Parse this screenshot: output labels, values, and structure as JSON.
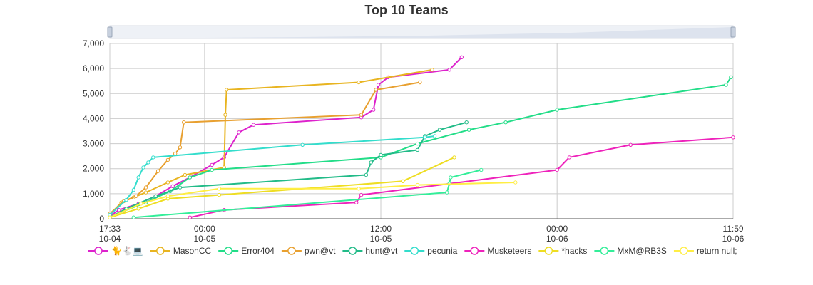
{
  "chart_data": {
    "type": "line",
    "title": "Top 10 Teams",
    "xlabel": "",
    "ylabel": "",
    "ylim": [
      0,
      7000
    ],
    "xlim": [
      "10-04 17:33",
      "10-06 11:59"
    ],
    "y_ticks": [
      "0",
      "1,000",
      "2,000",
      "3,000",
      "4,000",
      "5,000",
      "6,000",
      "7,000"
    ],
    "x_ticks": [
      {
        "time": "17:33",
        "date": "10-04"
      },
      {
        "time": "00:00",
        "date": "10-05"
      },
      {
        "time": "12:00",
        "date": "10-05"
      },
      {
        "time": "00:00",
        "date": "10-06"
      },
      {
        "time": "11:59",
        "date": "10-06"
      }
    ],
    "grid": true,
    "legend_position": "bottom",
    "has_range_slider": true,
    "series": [
      {
        "name": "🐈🐇💻",
        "color": "#dd22cc",
        "points": [
          [
            "10-04 17:33",
            100
          ],
          [
            "10-04 18:10",
            350
          ],
          [
            "10-04 19:30",
            600
          ],
          [
            "10-04 20:40",
            900
          ],
          [
            "10-04 21:50",
            1300
          ],
          [
            "10-04 23:00",
            1650
          ],
          [
            "10-05 00:30",
            2150
          ],
          [
            "10-05 01:20",
            2450
          ],
          [
            "10-05 02:20",
            3450
          ],
          [
            "10-05 03:20",
            3750
          ],
          [
            "10-05 10:40",
            4050
          ],
          [
            "10-05 11:30",
            4350
          ],
          [
            "10-05 11:50",
            5350
          ],
          [
            "10-05 12:30",
            5650
          ],
          [
            "10-05 16:40",
            5950
          ],
          [
            "10-05 17:30",
            6450
          ]
        ]
      },
      {
        "name": "MasonCC",
        "color": "#e8b420",
        "points": [
          [
            "10-04 17:33",
            150
          ],
          [
            "10-04 18:20",
            650
          ],
          [
            "10-04 19:10",
            850
          ],
          [
            "10-04 20:00",
            1050
          ],
          [
            "10-04 21:30",
            1450
          ],
          [
            "10-04 22:40",
            1750
          ],
          [
            "10-05 01:20",
            2050
          ],
          [
            "10-05 01:25",
            4150
          ],
          [
            "10-05 01:30",
            5150
          ],
          [
            "10-05 10:30",
            5450
          ],
          [
            "10-05 15:30",
            5950
          ]
        ]
      },
      {
        "name": "Error404",
        "color": "#22dd88",
        "points": [
          [
            "10-04 17:33",
            50
          ],
          [
            "10-04 18:30",
            300
          ],
          [
            "10-04 20:00",
            650
          ],
          [
            "10-04 21:40",
            1100
          ],
          [
            "10-04 23:00",
            1650
          ],
          [
            "10-05 00:30",
            1950
          ],
          [
            "10-05 12:00",
            2450
          ],
          [
            "10-05 14:30",
            3000
          ],
          [
            "10-05 18:00",
            3550
          ],
          [
            "10-05 20:30",
            3850
          ],
          [
            "10-06 00:00",
            4350
          ],
          [
            "10-06 11:30",
            5350
          ],
          [
            "10-06 11:50",
            5650
          ]
        ]
      },
      {
        "name": "pwn@vt",
        "color": "#e8a030",
        "points": [
          [
            "10-04 17:33",
            200
          ],
          [
            "10-04 18:30",
            700
          ],
          [
            "10-04 19:20",
            900
          ],
          [
            "10-04 20:00",
            1250
          ],
          [
            "10-04 20:50",
            1900
          ],
          [
            "10-04 21:30",
            2350
          ],
          [
            "10-04 22:00",
            2600
          ],
          [
            "10-04 22:20",
            2850
          ],
          [
            "10-04 22:35",
            3850
          ],
          [
            "10-05 10:40",
            4150
          ],
          [
            "10-05 11:40",
            5150
          ],
          [
            "10-05 14:40",
            5450
          ]
        ]
      },
      {
        "name": "hunt@vt",
        "color": "#22bb88",
        "points": [
          [
            "10-04 17:33",
            50
          ],
          [
            "10-04 18:40",
            400
          ],
          [
            "10-04 20:40",
            900
          ],
          [
            "10-04 22:20",
            1250
          ],
          [
            "10-05 11:00",
            1750
          ],
          [
            "10-05 11:20",
            2250
          ],
          [
            "10-05 12:00",
            2550
          ],
          [
            "10-05 14:30",
            2750
          ],
          [
            "10-05 15:00",
            3300
          ],
          [
            "10-05 16:00",
            3550
          ],
          [
            "10-05 17:50",
            3850
          ]
        ]
      },
      {
        "name": "pecunia",
        "color": "#33ddcc",
        "points": [
          [
            "10-04 17:33",
            150
          ],
          [
            "10-04 18:40",
            750
          ],
          [
            "10-04 19:10",
            1150
          ],
          [
            "10-04 19:30",
            1650
          ],
          [
            "10-04 19:50",
            2050
          ],
          [
            "10-04 20:10",
            2250
          ],
          [
            "10-04 20:30",
            2450
          ],
          [
            "10-05 06:40",
            2950
          ],
          [
            "10-05 15:00",
            3250
          ],
          [
            "10-05 15:40",
            3300
          ]
        ]
      },
      {
        "name": "Musketeers",
        "color": "#ee22bb",
        "points": [
          [
            "10-04 23:00",
            50
          ],
          [
            "10-05 01:20",
            350
          ],
          [
            "10-05 10:20",
            650
          ],
          [
            "10-05 10:40",
            950
          ],
          [
            "10-06 00:00",
            1950
          ],
          [
            "10-06 00:50",
            2450
          ],
          [
            "10-06 05:00",
            2950
          ],
          [
            "10-06 11:59",
            3250
          ]
        ]
      },
      {
        "name": "*hacks",
        "color": "#eedd22",
        "points": [
          [
            "10-04 17:33",
            50
          ],
          [
            "10-04 19:30",
            400
          ],
          [
            "10-04 21:30",
            800
          ],
          [
            "10-05 01:00",
            950
          ],
          [
            "10-05 13:30",
            1500
          ],
          [
            "10-05 17:00",
            2450
          ]
        ]
      },
      {
        "name": "MxM@RB3S",
        "color": "#33ee99",
        "points": [
          [
            "10-04 19:10",
            50
          ],
          [
            "10-05 16:30",
            1050
          ],
          [
            "10-05 16:40",
            1400
          ],
          [
            "10-05 16:45",
            1650
          ],
          [
            "10-05 18:50",
            1950
          ]
        ]
      },
      {
        "name": "return null;",
        "color": "#ffee44",
        "points": [
          [
            "10-04 17:33",
            50
          ],
          [
            "10-04 19:40",
            600
          ],
          [
            "10-04 21:30",
            900
          ],
          [
            "10-05 01:00",
            1200
          ],
          [
            "10-05 10:30",
            1200
          ],
          [
            "10-05 14:30",
            1350
          ],
          [
            "10-05 21:10",
            1450
          ]
        ]
      }
    ]
  }
}
